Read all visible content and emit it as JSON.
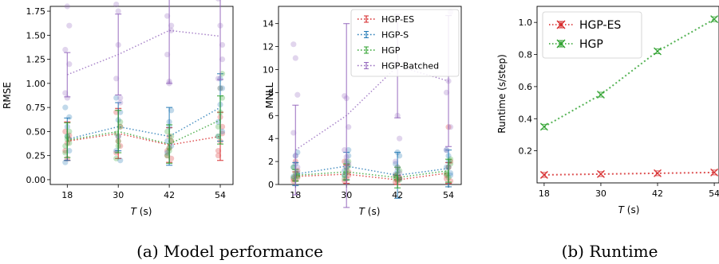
{
  "captions": {
    "left": "(a) Model performance",
    "right": "(b) Runtime"
  },
  "colors": {
    "HGP-ES": "#d62728",
    "HGP-S": "#1f77b4",
    "HGP": "#2ca02c",
    "HGP-Batched": "#9467bd"
  },
  "chart_data": [
    {
      "type": "line",
      "xlabel": "T (s)",
      "xlabel_var": "T",
      "xlabel_unit": "(s)",
      "ylabel": "RMSE",
      "x": [
        18,
        30,
        42,
        54
      ],
      "xticks": [
        "18",
        "30",
        "42",
        "54"
      ],
      "ylim": [
        -0.05,
        1.8
      ],
      "yticks": [
        "0.00",
        "0.25",
        "0.50",
        "0.75",
        "1.00",
        "1.25",
        "1.50",
        "1.75"
      ],
      "series": [
        {
          "key": "HGP-ES",
          "values": [
            0.4,
            0.48,
            0.36,
            0.45
          ],
          "err": [
            0.2,
            0.26,
            0.18,
            0.25
          ],
          "scatter": [
            [
              0.3,
              0.38,
              0.42,
              0.5,
              0.22,
              0.46
            ],
            [
              0.28,
              0.4,
              0.55,
              0.7,
              0.45,
              0.35
            ],
            [
              0.25,
              0.33,
              0.4,
              0.3,
              0.45,
              0.22
            ],
            [
              0.25,
              0.4,
              0.55,
              0.3,
              0.65,
              0.48
            ]
          ]
        },
        {
          "key": "HGP-S",
          "values": [
            0.42,
            0.55,
            0.45,
            0.75
          ],
          "err": [
            0.22,
            0.25,
            0.3,
            0.35
          ],
          "scatter": [
            [
              0.18,
              0.45,
              0.65,
              0.75,
              0.55,
              0.3
            ],
            [
              0.3,
              0.62,
              0.7,
              0.85,
              0.45,
              0.2
            ],
            [
              0.28,
              0.6,
              0.72,
              0.4,
              0.55,
              0.35
            ],
            [
              0.45,
              0.78,
              0.95,
              0.6,
              1.05,
              0.5
            ]
          ]
        },
        {
          "key": "HGP",
          "values": [
            0.41,
            0.5,
            0.37,
            0.62
          ],
          "err": [
            0.18,
            0.22,
            0.2,
            0.25
          ],
          "scatter": [
            [
              0.35,
              0.42,
              0.5,
              0.28,
              0.45,
              0.38
            ],
            [
              0.22,
              0.4,
              0.55,
              0.48,
              0.35,
              0.6
            ],
            [
              0.25,
              0.33,
              0.45,
              0.5,
              0.3,
              0.4
            ],
            [
              0.55,
              0.7,
              0.85,
              0.45,
              0.95,
              1.1
            ]
          ]
        },
        {
          "key": "HGP-Batched",
          "values": [
            1.09,
            1.3,
            1.55,
            1.49
          ],
          "err": [
            0.23,
            0.42,
            0.55,
            0.45
          ],
          "scatter": [
            [
              1.35,
              1.8,
              1.6,
              0.9,
              0.85,
              1.2
            ],
            [
              1.82,
              1.75,
              0.85,
              1.05,
              1.4,
              0.8
            ],
            [
              1.7,
              1.02,
              1.55,
              1.3,
              1.0,
              1.6
            ],
            [
              1.88,
              1.6,
              1.25,
              1.05,
              0.95,
              1.4
            ]
          ]
        }
      ]
    },
    {
      "type": "line",
      "xlabel": "T (s)",
      "xlabel_var": "T",
      "xlabel_unit": "(s)",
      "ylabel": "MNLL",
      "x": [
        18,
        30,
        42,
        54
      ],
      "xticks": [
        "18",
        "30",
        "42",
        "54"
      ],
      "ylim": [
        0,
        15.5
      ],
      "yticks": [
        "0",
        "2",
        "4",
        "6",
        "8",
        "10",
        "12",
        "14"
      ],
      "legend": "top-right",
      "series": [
        {
          "key": "HGP-ES",
          "name": "HGP-ES",
          "values": [
            0.7,
            0.9,
            0.4,
            1.0
          ],
          "err": [
            0.4,
            0.8,
            0.4,
            0.9
          ],
          "scatter": [
            [
              0.5,
              0.8,
              1.2,
              0.3,
              2.0,
              0.6
            ],
            [
              0.3,
              1.5,
              0.8,
              2.0,
              0.5,
              1.1
            ],
            [
              0.2,
              0.4,
              0.6,
              0.8,
              0.3,
              0.5
            ],
            [
              0.5,
              1.5,
              2.0,
              0.8,
              5.0,
              0.3
            ]
          ]
        },
        {
          "key": "HGP-S",
          "name": "HGP-S",
          "values": [
            0.9,
            1.6,
            0.8,
            1.4
          ],
          "err": [
            1.0,
            1.2,
            2.0,
            1.6
          ],
          "scatter": [
            [
              1.5,
              2.5,
              2.8,
              0.7,
              1.8,
              1.0
            ],
            [
              1.2,
              2.0,
              2.5,
              0.8,
              1.5,
              3.0
            ],
            [
              1.8,
              2.8,
              2.5,
              0.9,
              1.2,
              0.5
            ],
            [
              1.5,
              2.0,
              1.0,
              3.0,
              2.5,
              0.8
            ]
          ]
        },
        {
          "key": "HGP",
          "name": "HGP",
          "values": [
            0.8,
            1.1,
            0.6,
            1.2
          ],
          "err": [
            0.5,
            0.7,
            0.9,
            1.0
          ],
          "scatter": [
            [
              0.6,
              1.0,
              0.8,
              1.5,
              0.4,
              0.7
            ],
            [
              0.8,
              1.2,
              1.6,
              0.5,
              1.0,
              2.0
            ],
            [
              0.5,
              0.9,
              1.2,
              0.7,
              1.5,
              0.4
            ],
            [
              0.9,
              1.5,
              1.8,
              1.0,
              0.6,
              2.2
            ]
          ]
        },
        {
          "key": "HGP-Batched",
          "name": "HGP-Batched",
          "values": [
            3.0,
            6.0,
            10.3,
            9.0
          ],
          "err": [
            3.9,
            8.0,
            4.5,
            5.7
          ],
          "scatter": [
            [
              12.2,
              11.0,
              7.8,
              4.5,
              2.5,
              1.5
            ],
            [
              7.7,
              7.5,
              5.0,
              3.0,
              2.4,
              1.8
            ],
            [
              10.5,
              6.0,
              4.0,
              2.0,
              1.5,
              1.0
            ],
            [
              8.0,
              9.0,
              5.0,
              3.0,
              1.5,
              15.0
            ]
          ]
        }
      ]
    },
    {
      "type": "line",
      "xlabel": "T (s)",
      "xlabel_var": "T",
      "xlabel_unit": "(s)",
      "ylabel": "Runtime (s/step)",
      "x": [
        18,
        30,
        42,
        54
      ],
      "xticks": [
        "18",
        "30",
        "42",
        "54"
      ],
      "ylim": [
        0,
        1.1
      ],
      "yticks": [
        "0.2",
        "0.4",
        "0.6",
        "0.8",
        "1.0"
      ],
      "legend": "top-left",
      "series": [
        {
          "key": "HGP-ES",
          "name": "HGP-ES",
          "values": [
            0.05,
            0.055,
            0.06,
            0.065
          ]
        },
        {
          "key": "HGP",
          "name": "HGP",
          "values": [
            0.35,
            0.55,
            0.82,
            1.02
          ]
        }
      ]
    }
  ]
}
